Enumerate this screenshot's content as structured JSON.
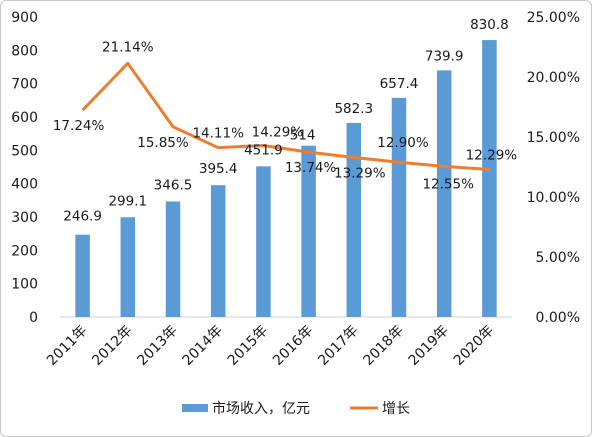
{
  "chart_data": {
    "type": "bar",
    "categories": [
      "2011年",
      "2012年",
      "2013年",
      "2014年",
      "2015年",
      "2016年",
      "2017年",
      "2018年",
      "2019年",
      "2020年"
    ],
    "series": [
      {
        "name": "市场收入，亿元",
        "type": "bar",
        "axis": "left",
        "color": "#5b9bd5",
        "values": [
          246.9,
          299.1,
          346.5,
          395.4,
          451.9,
          514,
          582.3,
          657.4,
          739.9,
          830.8
        ],
        "labels": [
          "246.9",
          "299.1",
          "346.5",
          "395.4",
          "451.9",
          "514",
          "582.3",
          "657.4",
          "739.9",
          "830.8"
        ]
      },
      {
        "name": "增长",
        "type": "line",
        "axis": "right",
        "color": "#ed7d31",
        "values": [
          17.24,
          21.14,
          15.85,
          14.11,
          14.29,
          13.74,
          13.29,
          12.9,
          12.55,
          12.29
        ],
        "labels": [
          "17.24%",
          "21.14%",
          "15.85%",
          "14.11%",
          "14.29%",
          "13.74%",
          "13.29%",
          "12.90%",
          "12.55%",
          "12.29%"
        ]
      }
    ],
    "y_left": {
      "min": 0,
      "max": 900,
      "ticks": [
        "0",
        "100",
        "200",
        "300",
        "400",
        "500",
        "600",
        "700",
        "800",
        "900"
      ]
    },
    "y_right": {
      "min": 0,
      "max": 25,
      "ticks": [
        "0.00%",
        "5.00%",
        "10.00%",
        "15.00%",
        "20.00%",
        "25.00%"
      ]
    },
    "grid": false,
    "legend": "bottom"
  }
}
